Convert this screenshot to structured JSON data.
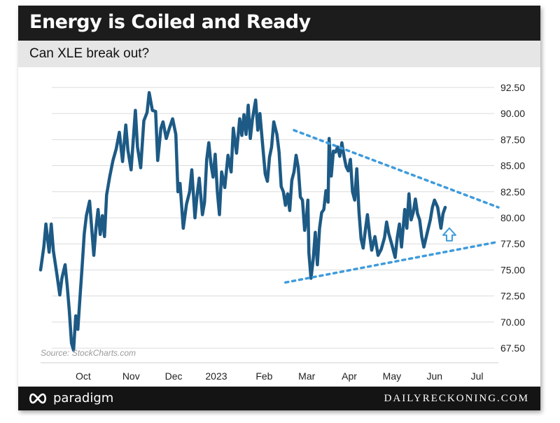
{
  "header": {
    "title": "Energy is Coiled and Ready",
    "subtitle": "Can XLE break out?"
  },
  "footer": {
    "brand": "paradigm",
    "site": "DAILYRECKONING.COM",
    "logo_icon": "infinity-icon"
  },
  "source": "Source: StockCharts.com",
  "colors": {
    "line": "#1d5a85",
    "trend": "#3e9bdc",
    "arrow": "#3e9bdc",
    "title_bg": "#1c1c1c",
    "subtitle_bg": "#e6e6e6"
  },
  "chart_data": {
    "type": "line",
    "title": "Energy is Coiled and Ready",
    "subtitle": "Can XLE break out?",
    "ylim": [
      66.5,
      93.5
    ],
    "yticks": [
      67.5,
      70.0,
      72.5,
      75.0,
      77.5,
      80.0,
      82.5,
      85.0,
      87.5,
      90.0,
      92.5
    ],
    "ytick_labels": [
      "67.50",
      "70.00",
      "72.50",
      "75.00",
      "77.50",
      "80.00",
      "82.50",
      "85.00",
      "87.50",
      "90.00",
      "92.50"
    ],
    "xlim": [
      0,
      43
    ],
    "x_categories": [
      {
        "label": "Oct",
        "x": 4
      },
      {
        "label": "Nov",
        "x": 8.5
      },
      {
        "label": "Dec",
        "x": 12.5
      },
      {
        "label": "2023",
        "x": 16.5
      },
      {
        "label": "Feb",
        "x": 21
      },
      {
        "label": "Mar",
        "x": 25
      },
      {
        "label": "Apr",
        "x": 29
      },
      {
        "label": "May",
        "x": 33
      },
      {
        "label": "Jun",
        "x": 37
      },
      {
        "label": "Jul",
        "x": 41
      }
    ],
    "series": [
      {
        "values": [
          [
            0.0,
            75.0
          ],
          [
            0.3,
            77.2
          ],
          [
            0.5,
            79.4
          ],
          [
            0.8,
            76.7
          ],
          [
            1.0,
            79.4
          ],
          [
            1.2,
            76.8
          ],
          [
            1.5,
            74.8
          ],
          [
            1.8,
            72.6
          ],
          [
            2.0,
            74.2
          ],
          [
            2.3,
            75.5
          ],
          [
            2.5,
            73.5
          ],
          [
            2.7,
            71.0
          ],
          [
            2.9,
            68.0
          ],
          [
            3.1,
            67.3
          ],
          [
            3.3,
            70.6
          ],
          [
            3.5,
            69.3
          ],
          [
            3.7,
            72.4
          ],
          [
            3.9,
            75.3
          ],
          [
            4.1,
            78.5
          ],
          [
            4.3,
            80.2
          ],
          [
            4.6,
            81.6
          ],
          [
            4.8,
            79.0
          ],
          [
            5.0,
            76.4
          ],
          [
            5.2,
            79.0
          ],
          [
            5.4,
            80.8
          ],
          [
            5.6,
            78.4
          ],
          [
            5.8,
            80.2
          ],
          [
            6.0,
            78.2
          ],
          [
            6.2,
            82.2
          ],
          [
            6.5,
            84.0
          ],
          [
            6.8,
            85.5
          ],
          [
            7.1,
            86.6
          ],
          [
            7.4,
            88.2
          ],
          [
            7.7,
            85.4
          ],
          [
            8.0,
            88.9
          ],
          [
            8.2,
            86.5
          ],
          [
            8.5,
            84.6
          ],
          [
            8.7,
            87.4
          ],
          [
            8.9,
            90.3
          ],
          [
            9.1,
            86.8
          ],
          [
            9.4,
            84.8
          ],
          [
            9.7,
            89.3
          ],
          [
            10.0,
            90.1
          ],
          [
            10.2,
            92.0
          ],
          [
            10.5,
            90.3
          ],
          [
            10.8,
            90.2
          ],
          [
            11.0,
            85.5
          ],
          [
            11.3,
            88.6
          ],
          [
            11.5,
            89.2
          ],
          [
            11.8,
            87.6
          ],
          [
            12.1,
            88.6
          ],
          [
            12.4,
            89.5
          ],
          [
            12.7,
            88.0
          ],
          [
            12.9,
            82.5
          ],
          [
            13.1,
            83.3
          ],
          [
            13.4,
            79.0
          ],
          [
            13.7,
            81.3
          ],
          [
            14.0,
            82.5
          ],
          [
            14.2,
            84.6
          ],
          [
            14.5,
            80.0
          ],
          [
            14.7,
            82.2
          ],
          [
            14.9,
            83.8
          ],
          [
            15.2,
            80.3
          ],
          [
            15.4,
            81.5
          ],
          [
            15.6,
            85.6
          ],
          [
            15.8,
            87.2
          ],
          [
            16.0,
            85.2
          ],
          [
            16.2,
            83.9
          ],
          [
            16.4,
            86.1
          ],
          [
            16.6,
            82.5
          ],
          [
            16.8,
            80.3
          ],
          [
            17.0,
            84.4
          ],
          [
            17.3,
            82.9
          ],
          [
            17.6,
            86.0
          ],
          [
            17.9,
            84.4
          ],
          [
            18.1,
            88.6
          ],
          [
            18.4,
            86.2
          ],
          [
            18.7,
            89.5
          ],
          [
            18.9,
            87.9
          ],
          [
            19.1,
            89.9
          ],
          [
            19.3,
            88.0
          ],
          [
            19.5,
            90.8
          ],
          [
            19.7,
            87.6
          ],
          [
            19.9,
            89.5
          ],
          [
            20.2,
            91.3
          ],
          [
            20.4,
            88.4
          ],
          [
            20.6,
            90.0
          ],
          [
            20.8,
            87.6
          ],
          [
            21.1,
            84.2
          ],
          [
            21.3,
            83.5
          ],
          [
            21.5,
            85.8
          ],
          [
            21.7,
            86.8
          ],
          [
            21.9,
            89.2
          ],
          [
            22.2,
            88.0
          ],
          [
            22.4,
            86.3
          ],
          [
            22.6,
            83.0
          ],
          [
            22.8,
            82.5
          ],
          [
            23.0,
            81.2
          ],
          [
            23.2,
            82.3
          ],
          [
            23.4,
            80.7
          ],
          [
            23.6,
            83.6
          ],
          [
            23.8,
            84.4
          ],
          [
            24.0,
            86.0
          ],
          [
            24.2,
            84.8
          ],
          [
            24.4,
            82.0
          ],
          [
            24.6,
            81.7
          ],
          [
            24.8,
            78.8
          ],
          [
            25.0,
            80.3
          ],
          [
            25.1,
            81.7
          ],
          [
            25.2,
            76.6
          ],
          [
            25.4,
            74.2
          ],
          [
            25.6,
            76.0
          ],
          [
            25.8,
            78.6
          ],
          [
            26.0,
            75.5
          ],
          [
            26.2,
            79.0
          ],
          [
            26.4,
            80.5
          ],
          [
            26.6,
            80.8
          ],
          [
            26.8,
            82.6
          ],
          [
            27.0,
            81.5
          ],
          [
            27.1,
            87.6
          ],
          [
            27.3,
            84.0
          ],
          [
            27.5,
            86.4
          ],
          [
            27.7,
            86.3
          ],
          [
            27.9,
            86.8
          ],
          [
            28.1,
            85.9
          ],
          [
            28.3,
            87.2
          ],
          [
            28.5,
            85.9
          ],
          [
            28.7,
            84.9
          ],
          [
            28.9,
            84.5
          ],
          [
            29.1,
            85.6
          ],
          [
            29.3,
            82.5
          ],
          [
            29.5,
            81.7
          ],
          [
            29.7,
            84.7
          ],
          [
            29.9,
            80.6
          ],
          [
            30.1,
            78.0
          ],
          [
            30.3,
            77.1
          ],
          [
            30.5,
            78.8
          ],
          [
            30.7,
            80.3
          ],
          [
            30.9,
            78.4
          ],
          [
            31.1,
            76.9
          ],
          [
            31.4,
            78.2
          ],
          [
            31.7,
            76.4
          ],
          [
            32.0,
            77.0
          ],
          [
            32.3,
            78.1
          ],
          [
            32.5,
            79.6
          ],
          [
            32.7,
            78.5
          ],
          [
            33.0,
            77.4
          ],
          [
            33.3,
            76.2
          ],
          [
            33.5,
            78.1
          ],
          [
            33.7,
            79.4
          ],
          [
            33.9,
            77.2
          ],
          [
            34.2,
            80.8
          ],
          [
            34.4,
            79.0
          ],
          [
            34.6,
            82.3
          ],
          [
            34.8,
            79.8
          ],
          [
            35.0,
            80.5
          ],
          [
            35.2,
            81.8
          ],
          [
            35.4,
            80.4
          ],
          [
            35.6,
            79.8
          ],
          [
            35.8,
            78.2
          ],
          [
            36.0,
            77.2
          ],
          [
            36.3,
            78.5
          ],
          [
            36.6,
            79.8
          ],
          [
            36.8,
            81.0
          ],
          [
            37.0,
            81.7
          ],
          [
            37.3,
            81.0
          ],
          [
            37.6,
            79.0
          ],
          [
            37.8,
            80.4
          ],
          [
            38.0,
            81.0
          ]
        ]
      }
    ],
    "trendlines": [
      {
        "from": [
          23.8,
          88.4
        ],
        "to": [
          43.0,
          81.0
        ]
      },
      {
        "from": [
          23.0,
          73.8
        ],
        "to": [
          43.0,
          77.7
        ]
      }
    ],
    "annotation": {
      "type": "up-arrow",
      "x": 38.0,
      "y": 77.8
    }
  }
}
